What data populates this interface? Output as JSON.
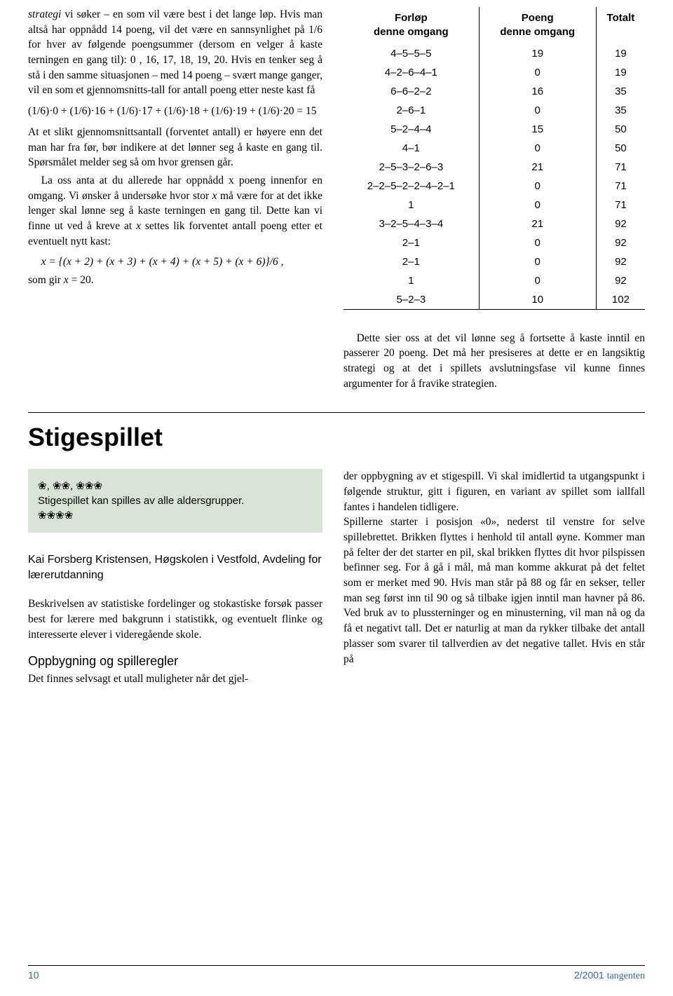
{
  "top_left": {
    "p1_a": "strategi",
    "p1_b": " vi søker – en som vil være best i det lange løp. Hvis man altså har oppnådd 14 poeng, vil det være en sannsynlighet på 1/6 for hver av følgende poengsummer (dersom en velger å kaste terningen en gang til): 0 , 16, 17, 18, 19, 20. Hvis en tenker seg å stå i den samme situasjonen – med 14 poeng – svært mange ganger, vil en som et gjennomsnitts-tall for antall poeng etter neste kast få",
    "eq1": "(1/6)·0 + (1/6)·16 + (1/6)·17 + (1/6)·18 + (1/6)·19 + (1/6)·20 = 15",
    "p2": "At et slikt gjennomsnittsantall (forventet antall) er høyere enn det man har fra før, bør indikere at det lønner seg å kaste en gang til. Spørsmålet melder seg så om hvor grensen går.",
    "p3": "La oss anta at du allerede har oppnådd x poeng innenfor en omgang. Vi ønsker å undersøke hvor stor ",
    "p3_x": "x",
    "p3_b": " må være for at det ikke lenger skal lønne seg å kaste terningen en gang til. Dette kan vi finne ut ved å kreve at ",
    "p3_x2": "x",
    "p3_c": " settes lik forventet antall poeng etter et eventuelt nytt kast:",
    "eq2": "x = {(x + 2) + (x + 3) + (x + 4) + (x + 5) + (x + 6)}/6 ,",
    "p4": "som gir ",
    "p4_x": "x",
    "p4_b": " = 20."
  },
  "table": {
    "header": [
      "Forløp denne omgang",
      "Poeng denne omgang",
      "Totalt"
    ],
    "rows": [
      [
        "4–5–5–5",
        "19",
        "19"
      ],
      [
        "4–2–6–4–1",
        "0",
        "19"
      ],
      [
        "6–6–2–2",
        "16",
        "35"
      ],
      [
        "2–6–1",
        "0",
        "35"
      ],
      [
        "5–2–4–4",
        "15",
        "50"
      ],
      [
        "4–1",
        "0",
        "50"
      ],
      [
        "2–5–3–2–6–3",
        "21",
        "71"
      ],
      [
        "2–2–5–2–2–4–2–1",
        "0",
        "71"
      ],
      [
        "1",
        "0",
        "71"
      ],
      [
        "3–2–5–4–3–4",
        "21",
        "92"
      ],
      [
        "2–1",
        "0",
        "92"
      ],
      [
        "2–1",
        "0",
        "92"
      ],
      [
        "1",
        "0",
        "92"
      ],
      [
        "5–2–3",
        "10",
        "102"
      ]
    ]
  },
  "right_para": "Dette sier oss at det vil lønne seg å fortsette å kaste inntil en passerer 20 poeng. Det må her presiseres at dette er en langsiktig strategi og at det i spillets avslutningsfase vil kunne finnes argumenter for å fravike strategien.",
  "article_title": "Stigespillet",
  "info_box": {
    "line1": "❀, ❀❀, ❀❀❀",
    "line2": "Stigespillet kan spilles av alle aldersgrupper.",
    "line3": "❀❀❀❀"
  },
  "author": "Kai Forsberg Kristensen, Høgskolen i Vestfold, Avdeling for lærerutdanning",
  "bottom_left_p1": "Beskrivelsen av statistiske fordelinger og stokastiske forsøk passer best for lærere med bakgrunn i statistikk, og eventuelt flinke og interesserte elever i videregående skole.",
  "subheading": "Oppbygning og spilleregler",
  "bottom_left_p2": "Det finnes selvsagt et utall muligheter når det gjel-",
  "bottom_right_p": "der oppbygning av et stigespill. Vi skal imidlertid ta utgangspunkt i følgende struktur, gitt i figuren, en variant av spillet som iallfall fantes i handelen tidligere.\nSpillerne starter i posisjon «0», nederst til venstre for selve spillebrettet. Brikken flyttes i henhold til antall øyne. Kommer man på felter der det starter en pil, skal brikken flyttes dit hvor pilspissen befinner seg. For å gå i mål, må man komme akkurat på det feltet som er merket med 90. Hvis man står på 88 og får en sekser, teller man seg først inn til 90 og så tilbake igjen inntil man havner på 86. Ved bruk av to plussterninger og en minusterning, vil man nå og da få et negativt tall. Det er naturlig at man da rykker tilbake det antall plasser som svarer til tallverdien av det negative tallet. Hvis en står på",
  "footer": {
    "page": "10",
    "issue": "2/2001 ",
    "journal": "tangenten"
  }
}
